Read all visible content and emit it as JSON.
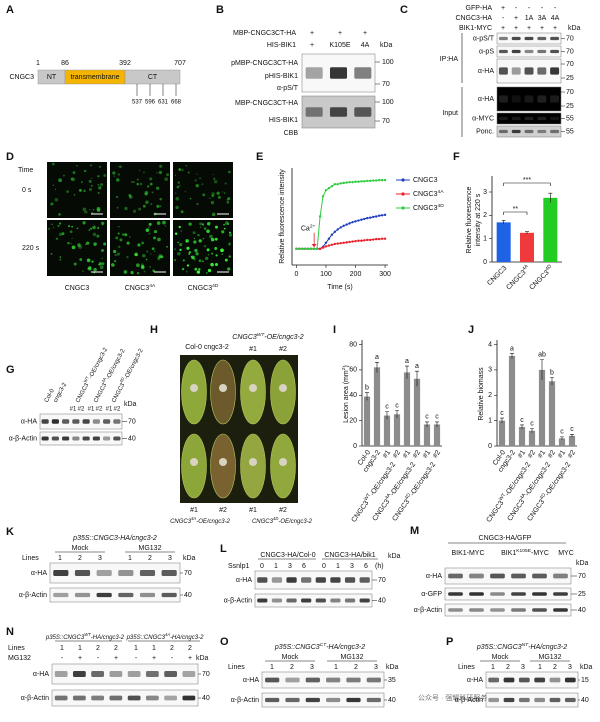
{
  "chart_data": [
    {
      "type": "line",
      "ylabel": "Relative fluorescence intensity",
      "xlabel": "Time (s)",
      "annotation": {
        "base": "Ca",
        "sup": "2+"
      },
      "x": [
        0,
        10,
        20,
        30,
        40,
        50,
        60,
        70,
        80,
        90,
        100,
        110,
        120,
        130,
        140,
        150,
        160,
        170,
        180,
        190,
        200,
        210,
        220,
        230,
        240,
        250,
        260,
        270,
        280,
        290,
        300
      ],
      "xlim": [
        -15,
        310
      ],
      "xticks": [
        0,
        100,
        200,
        300
      ],
      "ylim": [
        0.6,
        3.0
      ],
      "series": [
        {
          "name": "CNGC3",
          "color": "#1f3fbf",
          "values": [
            1,
            1,
            1,
            1,
            1,
            1,
            1,
            1,
            1,
            1.05,
            1.15,
            1.25,
            1.35,
            1.42,
            1.48,
            1.53,
            1.57,
            1.6,
            1.63,
            1.66,
            1.68,
            1.7,
            1.72,
            1.74,
            1.76,
            1.77,
            1.79,
            1.8,
            1.82,
            1.83,
            1.84
          ]
        },
        {
          "name": "CNGC3",
          "sup": "4A",
          "color": "#e8202a",
          "values": [
            1,
            1,
            1,
            1,
            1,
            1,
            1,
            1,
            1,
            1.03,
            1.06,
            1.08,
            1.1,
            1.12,
            1.13,
            1.14,
            1.15,
            1.16,
            1.17,
            1.18,
            1.19,
            1.2,
            1.2,
            1.21,
            1.22,
            1.22,
            1.23,
            1.24,
            1.24,
            1.25,
            1.25
          ]
        },
        {
          "name": "CNGC3",
          "sup": "4D",
          "color": "#2ecc40",
          "values": [
            1,
            1,
            1,
            1,
            1,
            1,
            1,
            1,
            1.8,
            2.3,
            2.45,
            2.5,
            2.55,
            2.6,
            2.6,
            2.62,
            2.63,
            2.64,
            2.65,
            2.65,
            2.66,
            2.66,
            2.67,
            2.67,
            2.68,
            2.68,
            2.69,
            2.69,
            2.7,
            2.7,
            2.7
          ]
        }
      ]
    },
    {
      "type": "bar",
      "ylabel": [
        "Relative fluorescence",
        "intensity at 220 s"
      ],
      "categories": [
        {
          "base": "CNGC3"
        },
        {
          "base": "CNGC3",
          "sup": "4A"
        },
        {
          "base": "CNGC3",
          "sup": "4D"
        }
      ],
      "values": [
        1.7,
        1.25,
        2.75
      ],
      "errors": [
        0.08,
        0.05,
        0.2
      ],
      "colors": [
        "#1e62e6",
        "#f0393b",
        "#22cc22"
      ],
      "ylim": [
        0,
        3.6
      ],
      "yticks": [
        0,
        1,
        2,
        3
      ],
      "significance": [
        "**",
        "***"
      ]
    },
    {
      "type": "bar",
      "ylabel": {
        "base": "Lesion area (mm",
        "sup": "2",
        "rest": ")"
      },
      "categories": [
        "Col-0",
        "cngc3-2",
        "#1",
        "#2",
        "#1",
        "#2",
        "#1",
        "#2"
      ],
      "group_labels": [
        {
          "base": "CNGC3",
          "sup": "WT",
          "rest": "-OE/cngc3-2"
        },
        {
          "base": "CNGC3",
          "sup": "4A",
          "rest": "-OE/cngc3-2"
        },
        {
          "base": "CNGC3",
          "sup": "4D",
          "rest": "-OE/cngc3-2"
        }
      ],
      "values": [
        39,
        62,
        24,
        25,
        58,
        53,
        17,
        17
      ],
      "errors": [
        3,
        4,
        3,
        3,
        5,
        6,
        2,
        2
      ],
      "letters": [
        "b",
        "a",
        "c",
        "c",
        "a",
        "a",
        "c",
        "c"
      ],
      "color": "#8c8c8c",
      "ylim": [
        0,
        82
      ],
      "yticks": [
        0,
        20,
        40,
        60,
        80
      ]
    },
    {
      "type": "bar",
      "ylabel": "Relative biomass",
      "categories": [
        "Col-0",
        "cngc3-2",
        "#1",
        "#2",
        "#1",
        "#2",
        "#1",
        "#2"
      ],
      "group_labels": [
        {
          "base": "CNGC3",
          "sup": "WT",
          "rest": "-OE/cngc3-2"
        },
        {
          "base": "CNGC3",
          "sup": "4A",
          "rest": "-OE/cngc3-2"
        },
        {
          "base": "CNGC3",
          "sup": "4D",
          "rest": "-OE/cngc3-2"
        }
      ],
      "values": [
        1.0,
        3.55,
        0.75,
        0.6,
        3.0,
        2.55,
        0.3,
        0.4
      ],
      "errors": [
        0.1,
        0.1,
        0.08,
        0.08,
        0.4,
        0.15,
        0.06,
        0.06
      ],
      "letters": [
        "c",
        "a",
        "c",
        "c",
        "ab",
        "b",
        "c",
        "c"
      ],
      "color": "#8c8c8c",
      "ylim": [
        0,
        4.1
      ],
      "yticks": [
        0,
        1,
        2,
        3,
        4
      ]
    }
  ],
  "panels": {
    "a": {
      "letter": "A",
      "protein": "CNGC3",
      "domains": [
        "NT",
        "transmembrane",
        "CT"
      ],
      "positions": [
        1,
        86,
        392,
        707
      ],
      "sites": [
        537,
        596,
        631,
        668
      ]
    },
    "b": {
      "letter": "B",
      "rows": [
        {
          "label": "MBP-CNGC3CT-HA",
          "lanes": [
            "+",
            "+",
            "+"
          ]
        },
        {
          "label": "HIS-BIK1",
          "lanes": [
            "+",
            "K105E",
            "4A"
          ]
        }
      ],
      "kda": "kDa",
      "blot1": {
        "labels": [
          "pMBP-CNGC3CT-HA",
          "pHIS-BIK1",
          "α-pS/T"
        ],
        "markers": [
          100,
          70
        ]
      },
      "blot2": {
        "labels": [
          "MBP-CNGC3CT-HA",
          "HIS-BIK1"
        ],
        "stain": "CBB",
        "markers": [
          100,
          70
        ]
      }
    },
    "c": {
      "letter": "C",
      "rows": [
        {
          "label": "GFP-HA",
          "lanes": [
            "+",
            "-",
            "-",
            "-",
            "-"
          ]
        },
        {
          "label": "CNGC3-HA",
          "lanes": [
            "-",
            "+",
            "1A",
            "3A",
            "4A"
          ]
        },
        {
          "label": "BIK1-MYC",
          "lanes": [
            "+",
            "+",
            "+",
            "+",
            "+"
          ]
        }
      ],
      "kda": "kDa",
      "ip": {
        "group": "IP:HA",
        "blots": [
          {
            "label": "α-pS/T",
            "markers": [
              70
            ]
          },
          {
            "label": "α-pS",
            "markers": [
              70
            ]
          },
          {
            "label": "α-HA",
            "markers": [
              70,
              25
            ]
          }
        ]
      },
      "input": {
        "group": "Input",
        "blots": [
          {
            "label": "α-HA",
            "markers": [
              70,
              25
            ]
          },
          {
            "label": "α-MYC",
            "markers": [
              55
            ]
          },
          {
            "label": "Ponc.",
            "markers": [
              55
            ]
          }
        ]
      }
    },
    "d": {
      "letter": "D",
      "time": "Time",
      "rows": [
        "0 s",
        "220 s"
      ],
      "columns": [
        {
          "base": "CNGC3"
        },
        {
          "base": "CNGC3",
          "sup": "4A"
        },
        {
          "base": "CNGC3",
          "sup": "4D"
        }
      ]
    },
    "e": {
      "letter": "E"
    },
    "f": {
      "letter": "F"
    },
    "g": {
      "letter": "G",
      "columns": [
        "Col-0",
        "cngc3-2",
        {
          "base": "CNGC3",
          "sup": "WT",
          "rest": "-OE/cngc3-2"
        },
        {
          "base": "CNGC3",
          "sup": "4A",
          "rest": "-OE/cngc3-2"
        },
        {
          "base": "CNGC3",
          "sup": "4D",
          "rest": "-OE/cngc3-2"
        }
      ],
      "lines": [
        "#1",
        "#2",
        "#1",
        "#2",
        "#1",
        "#2"
      ],
      "kda": "kDa",
      "blots": [
        {
          "label": "α-HA",
          "marker": 70
        },
        {
          "label": "α-β-Actin",
          "marker": 40
        }
      ]
    },
    "h": {
      "letter": "H",
      "top_left": "Col-0 cngc3-2",
      "top_right": {
        "base": "CNGC3",
        "sup": "WT",
        "rest": "-OE/cngc3-2"
      },
      "top_lines": [
        "#1",
        "#2"
      ],
      "bottom_lines": [
        "#1",
        "#2",
        "#1",
        "#2"
      ],
      "bottom_labels": [
        {
          "base": "CNGC3",
          "sup": "4A",
          "rest": "-OE/cngc3-2"
        },
        {
          "base": "CNGC3",
          "sup": "4D",
          "rest": "-OE/cngc3-2"
        }
      ]
    },
    "i": {
      "letter": "I"
    },
    "j": {
      "letter": "J"
    },
    "k": {
      "letter": "K",
      "title": "p35S::CNGC3-HA/cngc3-2",
      "treatments": [
        "Mock",
        "MG132"
      ],
      "lines_label": "Lines",
      "lines": [
        1,
        2,
        3,
        1,
        2,
        3
      ],
      "kda": "kDa",
      "blots": [
        {
          "label": "α-HA",
          "marker": 70
        },
        {
          "label": "α-β-Actin",
          "marker": 40
        }
      ]
    },
    "l": {
      "letter": "L",
      "genotypes": [
        "CNGC3-HA/Col-0",
        "CNGC3-HA/bik1"
      ],
      "treatment": "Ssnlp1",
      "times": [
        0,
        1,
        3,
        6,
        0,
        1,
        3,
        6
      ],
      "unit": "(h)",
      "kda": "kDa",
      "blots": [
        {
          "label": "α-HA",
          "marker": 70
        },
        {
          "label": "α-β-Actin",
          "marker": 40
        }
      ]
    },
    "m": {
      "letter": "M",
      "title": "CNGC3-HA/GFP",
      "conditions": [
        "BIK1-MYC",
        {
          "base": "BIK1",
          "sup": "K105E",
          "rest": "-MYC"
        },
        "MYC"
      ],
      "kda": "kDa",
      "blots": [
        {
          "label": "α-HA",
          "marker": 70
        },
        {
          "label": "α-GFP",
          "marker": 25
        },
        {
          "label": "α-β-Actin",
          "marker": 40
        }
      ]
    },
    "n": {
      "letter": "N",
      "titles": [
        {
          "base": "p35S::CNGC3",
          "sup": "WT",
          "rest": "-HA/cngc3-2"
        },
        {
          "base": "p35S::CNGC3",
          "sup": "4A",
          "rest": "-HA/cngc3-2"
        }
      ],
      "lines_label": "Lines",
      "lines": [
        1,
        1,
        2,
        2,
        1,
        1,
        2,
        2
      ],
      "treatment": "MG132",
      "treatment_lanes": [
        "-",
        "+",
        "-",
        "+",
        "-",
        "+",
        "-",
        "+"
      ],
      "kda": "kDa",
      "blots": [
        {
          "label": "α-HA",
          "marker": 70
        },
        {
          "label": "α-β-Actin",
          "marker": 40
        }
      ]
    },
    "o": {
      "letter": "O",
      "title": {
        "base": "p35S::CNGC3",
        "sup": "CT",
        "rest": "-HA/cngc3-2"
      },
      "treatments": [
        "Mock",
        "MG132"
      ],
      "lines_label": "Lines",
      "lines": [
        1,
        2,
        3,
        1,
        2,
        3
      ],
      "kda": "kDa",
      "blots": [
        {
          "label": "α-HA",
          "marker": 35
        },
        {
          "label": "α-β-Actin",
          "marker": 40
        }
      ]
    },
    "p": {
      "letter": "P",
      "title": {
        "base": "p35S::CNGC3",
        "sup": "NT",
        "rest": "-HA/cngc3-2"
      },
      "treatments": [
        "Mock",
        "MG132"
      ],
      "lines_label": "Lines",
      "lines": [
        1,
        2,
        3,
        1,
        2,
        3
      ],
      "kda": "kDa",
      "blots": [
        {
          "label": "α-HA",
          "marker": 15
        },
        {
          "label": "α-β-Actin",
          "marker": 40
        }
      ]
    }
  },
  "watermark": "公众号 · 强耀科研服务"
}
